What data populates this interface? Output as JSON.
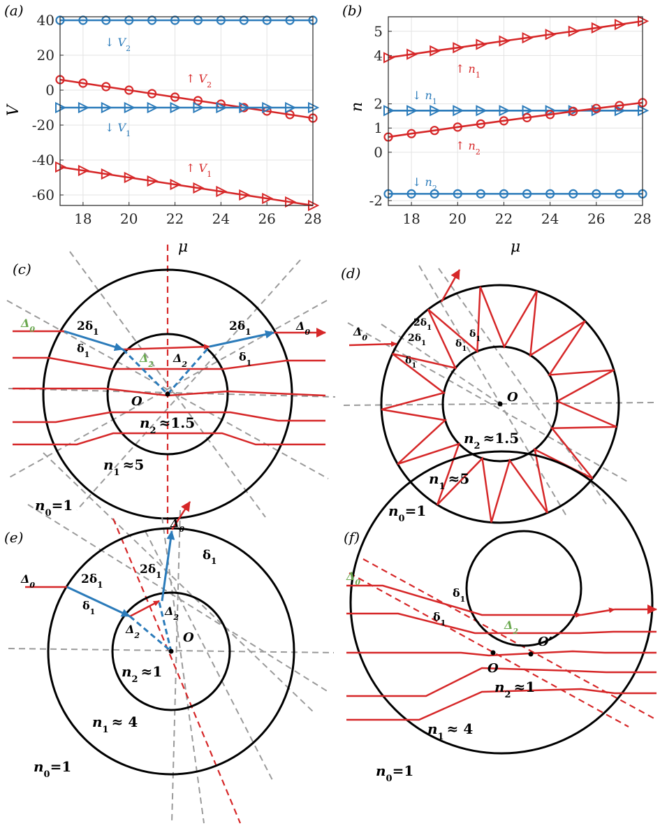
{
  "colors": {
    "blue": "#2b7bba",
    "red": "#d62728",
    "grey": "#9a9a9a",
    "green": "#6aa84f",
    "black": "#000000"
  },
  "chart_data": [
    {
      "panel": "(a)",
      "type": "line",
      "xlabel": "μ",
      "ylabel": "V",
      "xlim": [
        17,
        28
      ],
      "ylim": [
        -66,
        42
      ],
      "x_ticks": [
        18,
        20,
        22,
        24,
        26,
        28
      ],
      "y_ticks": [
        40,
        20,
        0,
        -20,
        -40,
        -60
      ],
      "grid": true,
      "x": [
        17,
        18,
        19,
        20,
        21,
        22,
        23,
        24,
        25,
        26,
        27,
        28
      ],
      "series": [
        {
          "name": "↓V₂",
          "label_sym": "↓",
          "label_var": "V",
          "label_sub": "2",
          "color": "blue",
          "marker": "circle",
          "values": [
            40,
            40,
            40,
            40,
            40,
            40,
            40,
            40,
            40,
            40,
            40,
            40
          ]
        },
        {
          "name": "↑V₂",
          "label_sym": "↑",
          "label_var": "V",
          "label_sub": "2",
          "color": "red",
          "marker": "circle",
          "values": [
            6,
            4,
            2,
            0,
            -2,
            -4,
            -6,
            -8,
            -10,
            -12,
            -14,
            -16
          ]
        },
        {
          "name": "↓V₁",
          "label_sym": "↓",
          "label_var": "V",
          "label_sub": "1",
          "color": "blue",
          "marker": "triangle",
          "values": [
            -10,
            -10,
            -10,
            -10,
            -10,
            -10,
            -10,
            -10,
            -10,
            -10,
            -10,
            -10
          ]
        },
        {
          "name": "↑V₁",
          "label_sym": "↑",
          "label_var": "V",
          "label_sub": "1",
          "color": "red",
          "marker": "triangle",
          "values": [
            -44,
            -46,
            -48,
            -50,
            -52,
            -54,
            -56,
            -58,
            -60,
            -62,
            -64,
            -66
          ]
        }
      ]
    },
    {
      "panel": "(b)",
      "type": "line",
      "xlabel": "μ",
      "ylabel": "n",
      "xlim": [
        17,
        28
      ],
      "ylim": [
        -2.2,
        5.6
      ],
      "x_ticks": [
        18,
        20,
        22,
        24,
        26,
        28
      ],
      "y_ticks": [
        5,
        4,
        2,
        1,
        0,
        -2
      ],
      "grid": true,
      "x": [
        17,
        18,
        19,
        20,
        21,
        22,
        23,
        24,
        25,
        26,
        27,
        28
      ],
      "series": [
        {
          "name": "↑n₁",
          "label_sym": "↑",
          "label_var": "n",
          "label_sub": "1",
          "color": "red",
          "marker": "triangle",
          "values": [
            3.91,
            4.05,
            4.19,
            4.32,
            4.46,
            4.6,
            4.73,
            4.87,
            5.0,
            5.14,
            5.28,
            5.42
          ]
        },
        {
          "name": "↓n₁",
          "label_sym": "↓",
          "label_var": "n",
          "label_sub": "1",
          "color": "blue",
          "marker": "triangle",
          "values": [
            1.72,
            1.72,
            1.72,
            1.72,
            1.72,
            1.72,
            1.72,
            1.72,
            1.72,
            1.72,
            1.72,
            1.72
          ]
        },
        {
          "name": "↑n₂",
          "label_sym": "↑",
          "label_var": "n",
          "label_sub": "2",
          "color": "red",
          "marker": "circle",
          "values": [
            0.63,
            0.77,
            0.9,
            1.04,
            1.17,
            1.3,
            1.43,
            1.56,
            1.69,
            1.81,
            1.93,
            2.05
          ]
        },
        {
          "name": "↓n₂",
          "label_sym": "↓",
          "label_var": "n",
          "label_sub": "2",
          "color": "blue",
          "marker": "circle",
          "values": [
            -1.72,
            -1.72,
            -1.72,
            -1.72,
            -1.72,
            -1.72,
            -1.72,
            -1.72,
            -1.72,
            -1.72,
            -1.72,
            -1.72
          ]
        }
      ]
    }
  ],
  "diagrams": {
    "c": {
      "panel": "(c)",
      "delta0": "Δ",
      "delta0_sub": "0",
      "delta2": "Δ",
      "delta2_sub": "2",
      "two_delta1": "2δ",
      "delta1": "δ",
      "sub1": "1",
      "origin": "O",
      "n2": "n",
      "n2_value": "≈1.5",
      "n1": "n",
      "n1_value": "≈5",
      "n0": "n",
      "n0_value": "=1"
    },
    "d": {
      "panel": "(d)",
      "delta0": "Δ",
      "delta0_sub": "0",
      "two_delta1": "2δ",
      "delta1": "δ",
      "sub1": "1",
      "origin": "O",
      "n2_value": "≈1.5",
      "n1_value": "≈5",
      "n0_value": "=1"
    },
    "e": {
      "panel": "(e)",
      "delta0": "Δ",
      "delta0_sub": "0",
      "delta2": "Δ",
      "delta2_sub": "2",
      "two_delta1": "2δ",
      "delta1": "δ",
      "sub1": "1",
      "origin": "O",
      "n2_value": "≈1",
      "n1_value": "≈ 4",
      "n0_value": "=1"
    },
    "f": {
      "panel": "(f)",
      "delta0": "Δ",
      "delta0_sub": "0",
      "delta2": "Δ",
      "delta2_sub": "2",
      "delta1": "δ",
      "sub1": "1",
      "origin": "O",
      "origin_prime": "O′",
      "n2_value": "≈1",
      "n1_value": "≈ 4",
      "n0_value": "=1"
    }
  }
}
